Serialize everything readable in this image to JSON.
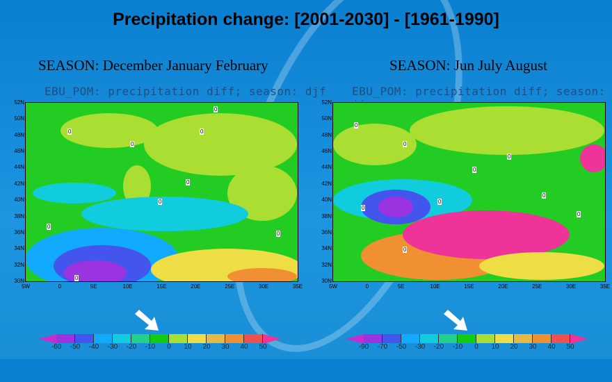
{
  "title": "Precipitation change: [2001-2030] - [1961-1990]",
  "panels": [
    {
      "season_label": "SEASON: December January February",
      "plot_title": "EBU_POM: precipitation diff; season: djf",
      "lat_ticks": [
        "52N",
        "50N",
        "48N",
        "46N",
        "44N",
        "42N",
        "40N",
        "38N",
        "36N",
        "34N",
        "32N",
        "30N"
      ],
      "lon_ticks": [
        "5W",
        "0",
        "5E",
        "10E",
        "15E",
        "20E",
        "25E",
        "30E",
        "35E"
      ],
      "colorbar": {
        "labels": [
          "-60",
          "-50",
          "-40",
          "-30",
          "-20",
          "-10",
          "0",
          "10",
          "20",
          "30",
          "40",
          "50"
        ]
      }
    },
    {
      "season_label": "SEASON: Jun July August",
      "plot_title": "EBU_POM: precipitation diff; season: jja",
      "lat_ticks": [
        "52N",
        "50N",
        "48N",
        "46N",
        "44N",
        "42N",
        "40N",
        "38N",
        "36N",
        "34N",
        "32N",
        "30N"
      ],
      "lon_ticks": [
        "5W",
        "0",
        "5E",
        "10E",
        "15E",
        "20E",
        "25E",
        "30E",
        "35E"
      ],
      "colorbar": {
        "labels": [
          "-90",
          "-70",
          "-50",
          "-30",
          "-20",
          "-10",
          "0",
          "10",
          "20",
          "30",
          "40",
          "50"
        ]
      }
    }
  ],
  "contour_label": "0",
  "colors": {
    "below": "#c030d0",
    "segments": [
      "#9c33e0",
      "#4455ee",
      "#11aaff",
      "#11ccdd",
      "#22d08a",
      "#11cc11",
      "#aade33",
      "#eedd44",
      "#e8b844",
      "#f09033",
      "#f05050"
    ],
    "above": "#ee3399",
    "arrow": "#ffffff"
  }
}
